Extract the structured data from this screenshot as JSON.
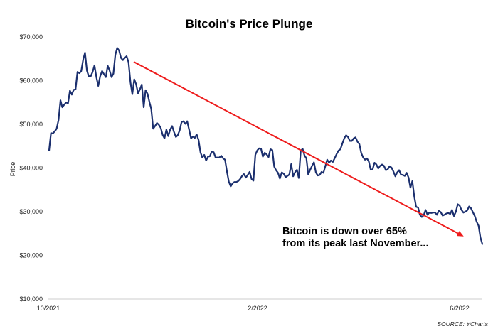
{
  "chart_data": {
    "type": "line",
    "title": "Bitcoin's Price Plunge",
    "xlabel": "",
    "ylabel": "Price",
    "ylim": [
      10000,
      70000
    ],
    "y_ticks": [
      "$10,000",
      "$20,000",
      "$30,000",
      "$40,000",
      "$50,000",
      "$60,000",
      "$70,000"
    ],
    "y_tick_values": [
      10000,
      20000,
      30000,
      40000,
      50000,
      60000,
      70000
    ],
    "x_ticks": [
      "10/2021",
      "2/2022",
      "6/2022"
    ],
    "grid": false,
    "legend": "none",
    "line_color": "#1b2f6e",
    "series": [
      {
        "values": [
          44000,
          48000,
          47900,
          48400,
          49000,
          51000,
          55500,
          53900,
          54500,
          55000,
          54800,
          57700,
          56800,
          57900,
          58000,
          62000,
          61700,
          62200,
          64800,
          66400,
          62300,
          61000,
          61000,
          62000,
          63500,
          60800,
          58800,
          61000,
          62200,
          61500,
          60800,
          63400,
          62300,
          60800,
          61600,
          65900,
          67500,
          66900,
          65200,
          64700,
          65200,
          65600,
          64200,
          59600,
          56900,
          60300,
          59200,
          57100,
          58000,
          59100,
          53900,
          57800,
          57000,
          55200,
          53500,
          49000,
          49600,
          50300,
          49900,
          49200,
          47600,
          46800,
          48800,
          47300,
          48800,
          49600,
          48300,
          47100,
          47500,
          48600,
          50500,
          50700,
          50100,
          50700,
          48800,
          46800,
          47200,
          46900,
          47700,
          46400,
          43600,
          42400,
          43000,
          41700,
          42600,
          42700,
          43800,
          43600,
          42400,
          42400,
          42400,
          42800,
          42200,
          41900,
          39200,
          36900,
          35800,
          36500,
          36800,
          36800,
          37000,
          37500,
          38200,
          38600,
          37800,
          38400,
          39100,
          37500,
          37100,
          43000,
          44000,
          44500,
          44400,
          42600,
          43500,
          43100,
          42500,
          44300,
          44100,
          40300,
          39500,
          38900,
          37600,
          39000,
          38700,
          37900,
          38200,
          38500,
          40900,
          38100,
          39000,
          39600,
          37700,
          43900,
          44400,
          42900,
          42200,
          38500,
          39600,
          40500,
          41300,
          39000,
          38300,
          38400,
          39100,
          38900,
          40400,
          41900,
          41200,
          41700,
          41400,
          42300,
          43200,
          44000,
          44300,
          45600,
          46800,
          47500,
          47100,
          46200,
          46200,
          46800,
          47000,
          46000,
          45500,
          43400,
          42400,
          41900,
          42200,
          41500,
          39600,
          39700,
          41200,
          40800,
          39900,
          40500,
          40800,
          40500,
          39500,
          39700,
          40400,
          40100,
          39200,
          38100,
          39000,
          39500,
          38500,
          38400,
          38200,
          38900,
          37800,
          35500,
          37000,
          33500,
          31100,
          31000,
          29300,
          28800,
          29200,
          30400,
          29300,
          29800,
          29700,
          29800,
          29800,
          29300,
          30200,
          29900,
          29100,
          29300,
          29600,
          29700,
          29500,
          30400,
          29000,
          30000,
          31700,
          31400,
          30400,
          29800,
          30000,
          30300,
          31200,
          30800,
          29900,
          29000,
          27700,
          26800,
          24100,
          22600
        ]
      }
    ],
    "annotation_lines": [
      "Bitcoin is down over 65%",
      "from its peak last November..."
    ],
    "trend_arrow": {
      "color": "#ee1c1c",
      "from_y": 64300,
      "to_y": 24500
    },
    "source": "SOURCE: YCharts"
  }
}
